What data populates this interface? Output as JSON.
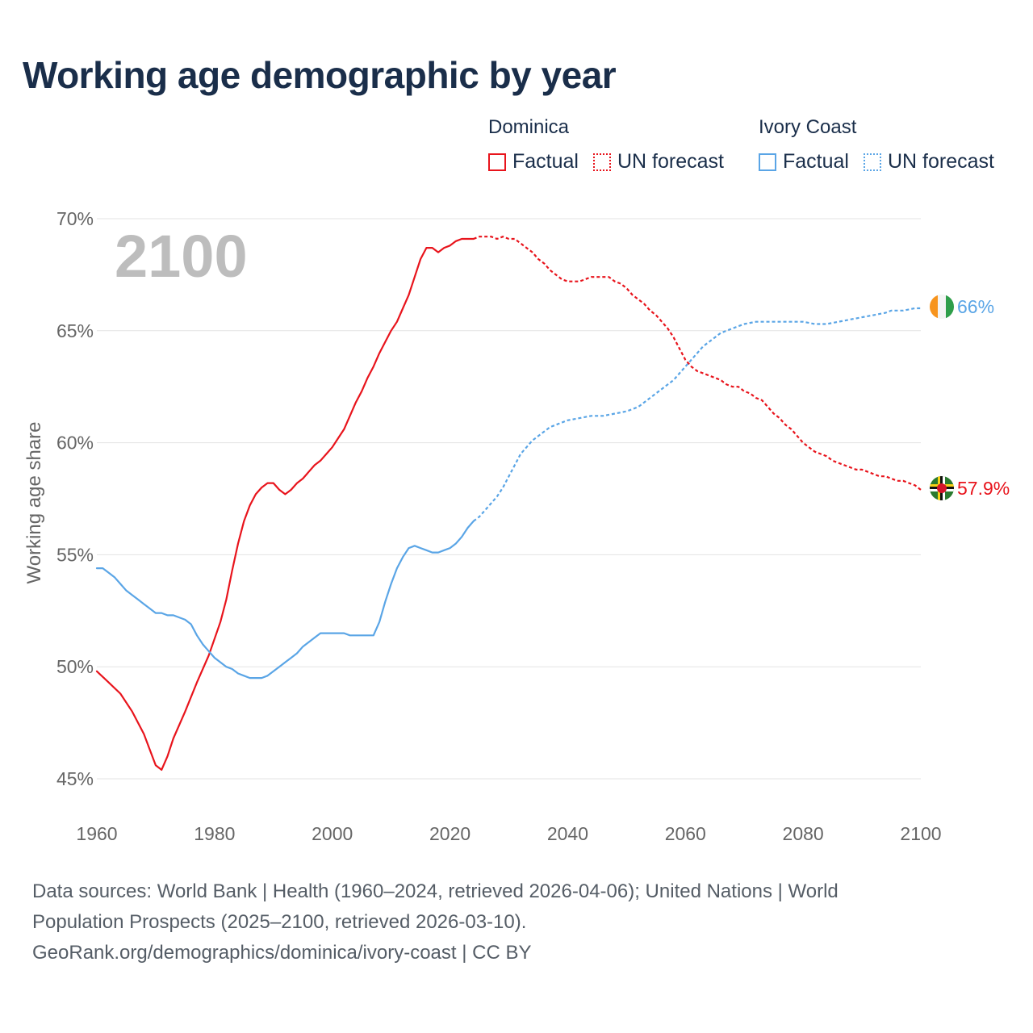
{
  "title": "Working age demographic by year",
  "year_display": "2100",
  "legend": {
    "groups": [
      {
        "name": "Dominica",
        "color": "#e8141c",
        "items": [
          {
            "label": "Factual",
            "style": "solid"
          },
          {
            "label": "UN forecast",
            "style": "dotted"
          }
        ]
      },
      {
        "name": "Ivory Coast",
        "color": "#5aa5e6",
        "items": [
          {
            "label": "Factual",
            "style": "solid"
          },
          {
            "label": "UN forecast",
            "style": "dotted"
          }
        ]
      }
    ]
  },
  "end_labels": {
    "dominica": "57.9%",
    "ivory_coast": "66%"
  },
  "footer": {
    "line1": "Data sources: World Bank | Health (1960–2024, retrieved 2026-04-06); United Nations | World",
    "line2": "Population Prospects (2025–2100, retrieved 2026-03-10).",
    "line3": "GeoRank.org/demographics/dominica/ivory-coast | CC BY"
  },
  "chart_data": {
    "type": "line",
    "title": "Working age demographic by year",
    "xlabel": "",
    "ylabel": "Working age share",
    "xlim": [
      1960,
      2100
    ],
    "ylim": [
      45,
      70
    ],
    "x_ticks": [
      1960,
      1980,
      2000,
      2020,
      2040,
      2060,
      2080,
      2100
    ],
    "y_ticks": [
      45,
      50,
      55,
      60,
      65,
      70
    ],
    "y_tick_labels": [
      "45%",
      "50%",
      "55%",
      "60%",
      "65%",
      "70%"
    ],
    "grid": true,
    "factual_end_year": 2024,
    "series": [
      {
        "name": "Dominica",
        "color": "#e8141c",
        "points": [
          [
            1960,
            49.8
          ],
          [
            1962,
            49.3
          ],
          [
            1964,
            48.8
          ],
          [
            1966,
            48.0
          ],
          [
            1968,
            47.0
          ],
          [
            1969,
            46.3
          ],
          [
            1970,
            45.6
          ],
          [
            1971,
            45.4
          ],
          [
            1972,
            46.0
          ],
          [
            1973,
            46.8
          ],
          [
            1975,
            48.0
          ],
          [
            1977,
            49.3
          ],
          [
            1979,
            50.5
          ],
          [
            1981,
            52.0
          ],
          [
            1982,
            53.0
          ],
          [
            1983,
            54.3
          ],
          [
            1984,
            55.5
          ],
          [
            1985,
            56.5
          ],
          [
            1986,
            57.2
          ],
          [
            1987,
            57.7
          ],
          [
            1988,
            58.0
          ],
          [
            1989,
            58.2
          ],
          [
            1990,
            58.2
          ],
          [
            1991,
            57.9
          ],
          [
            1992,
            57.7
          ],
          [
            1993,
            57.9
          ],
          [
            1994,
            58.2
          ],
          [
            1995,
            58.4
          ],
          [
            1996,
            58.7
          ],
          [
            1997,
            59.0
          ],
          [
            1998,
            59.2
          ],
          [
            1999,
            59.5
          ],
          [
            2000,
            59.8
          ],
          [
            2001,
            60.2
          ],
          [
            2002,
            60.6
          ],
          [
            2003,
            61.2
          ],
          [
            2004,
            61.8
          ],
          [
            2005,
            62.3
          ],
          [
            2006,
            62.9
          ],
          [
            2007,
            63.4
          ],
          [
            2008,
            64.0
          ],
          [
            2009,
            64.5
          ],
          [
            2010,
            65.0
          ],
          [
            2011,
            65.4
          ],
          [
            2012,
            66.0
          ],
          [
            2013,
            66.6
          ],
          [
            2014,
            67.4
          ],
          [
            2015,
            68.2
          ],
          [
            2016,
            68.7
          ],
          [
            2017,
            68.7
          ],
          [
            2018,
            68.5
          ],
          [
            2019,
            68.7
          ],
          [
            2020,
            68.8
          ],
          [
            2021,
            69.0
          ],
          [
            2022,
            69.1
          ],
          [
            2023,
            69.1
          ],
          [
            2024,
            69.1
          ],
          [
            2025,
            69.2
          ],
          [
            2027,
            69.2
          ],
          [
            2028,
            69.1
          ],
          [
            2029,
            69.2
          ],
          [
            2030,
            69.1
          ],
          [
            2031,
            69.1
          ],
          [
            2032,
            68.9
          ],
          [
            2033,
            68.7
          ],
          [
            2034,
            68.5
          ],
          [
            2035,
            68.2
          ],
          [
            2036,
            68.0
          ],
          [
            2037,
            67.7
          ],
          [
            2038,
            67.5
          ],
          [
            2039,
            67.3
          ],
          [
            2040,
            67.2
          ],
          [
            2041,
            67.2
          ],
          [
            2042,
            67.2
          ],
          [
            2043,
            67.3
          ],
          [
            2044,
            67.4
          ],
          [
            2045,
            67.4
          ],
          [
            2046,
            67.4
          ],
          [
            2047,
            67.4
          ],
          [
            2048,
            67.2
          ],
          [
            2049,
            67.1
          ],
          [
            2050,
            66.9
          ],
          [
            2051,
            66.6
          ],
          [
            2052,
            66.4
          ],
          [
            2053,
            66.2
          ],
          [
            2054,
            65.9
          ],
          [
            2055,
            65.7
          ],
          [
            2056,
            65.4
          ],
          [
            2057,
            65.1
          ],
          [
            2058,
            64.7
          ],
          [
            2059,
            64.2
          ],
          [
            2060,
            63.7
          ],
          [
            2061,
            63.4
          ],
          [
            2062,
            63.2
          ],
          [
            2063,
            63.1
          ],
          [
            2064,
            63.0
          ],
          [
            2065,
            62.9
          ],
          [
            2066,
            62.8
          ],
          [
            2067,
            62.6
          ],
          [
            2068,
            62.5
          ],
          [
            2069,
            62.5
          ],
          [
            2070,
            62.3
          ],
          [
            2071,
            62.2
          ],
          [
            2072,
            62.0
          ],
          [
            2073,
            61.9
          ],
          [
            2074,
            61.6
          ],
          [
            2075,
            61.3
          ],
          [
            2076,
            61.1
          ],
          [
            2077,
            60.8
          ],
          [
            2078,
            60.6
          ],
          [
            2079,
            60.3
          ],
          [
            2080,
            60.0
          ],
          [
            2081,
            59.8
          ],
          [
            2082,
            59.6
          ],
          [
            2083,
            59.5
          ],
          [
            2084,
            59.4
          ],
          [
            2085,
            59.2
          ],
          [
            2086,
            59.1
          ],
          [
            2087,
            59.0
          ],
          [
            2088,
            58.9
          ],
          [
            2089,
            58.8
          ],
          [
            2090,
            58.8
          ],
          [
            2091,
            58.7
          ],
          [
            2092,
            58.6
          ],
          [
            2093,
            58.5
          ],
          [
            2094,
            58.5
          ],
          [
            2095,
            58.4
          ],
          [
            2096,
            58.3
          ],
          [
            2097,
            58.3
          ],
          [
            2098,
            58.2
          ],
          [
            2099,
            58.1
          ],
          [
            2100,
            57.9
          ]
        ]
      },
      {
        "name": "Ivory Coast",
        "color": "#5aa5e6",
        "points": [
          [
            1960,
            54.4
          ],
          [
            1961,
            54.4
          ],
          [
            1962,
            54.2
          ],
          [
            1963,
            54.0
          ],
          [
            1964,
            53.7
          ],
          [
            1965,
            53.4
          ],
          [
            1966,
            53.2
          ],
          [
            1967,
            53.0
          ],
          [
            1968,
            52.8
          ],
          [
            1969,
            52.6
          ],
          [
            1970,
            52.4
          ],
          [
            1971,
            52.4
          ],
          [
            1972,
            52.3
          ],
          [
            1973,
            52.3
          ],
          [
            1974,
            52.2
          ],
          [
            1975,
            52.1
          ],
          [
            1976,
            51.9
          ],
          [
            1977,
            51.4
          ],
          [
            1978,
            51.0
          ],
          [
            1979,
            50.7
          ],
          [
            1980,
            50.4
          ],
          [
            1981,
            50.2
          ],
          [
            1982,
            50.0
          ],
          [
            1983,
            49.9
          ],
          [
            1984,
            49.7
          ],
          [
            1985,
            49.6
          ],
          [
            1986,
            49.5
          ],
          [
            1987,
            49.5
          ],
          [
            1988,
            49.5
          ],
          [
            1989,
            49.6
          ],
          [
            1990,
            49.8
          ],
          [
            1991,
            50.0
          ],
          [
            1992,
            50.2
          ],
          [
            1993,
            50.4
          ],
          [
            1994,
            50.6
          ],
          [
            1995,
            50.9
          ],
          [
            1996,
            51.1
          ],
          [
            1997,
            51.3
          ],
          [
            1998,
            51.5
          ],
          [
            1999,
            51.5
          ],
          [
            2000,
            51.5
          ],
          [
            2001,
            51.5
          ],
          [
            2002,
            51.5
          ],
          [
            2003,
            51.4
          ],
          [
            2004,
            51.4
          ],
          [
            2005,
            51.4
          ],
          [
            2006,
            51.4
          ],
          [
            2007,
            51.4
          ],
          [
            2008,
            52.0
          ],
          [
            2009,
            52.9
          ],
          [
            2010,
            53.7
          ],
          [
            2011,
            54.4
          ],
          [
            2012,
            54.9
          ],
          [
            2013,
            55.3
          ],
          [
            2014,
            55.4
          ],
          [
            2015,
            55.3
          ],
          [
            2016,
            55.2
          ],
          [
            2017,
            55.1
          ],
          [
            2018,
            55.1
          ],
          [
            2019,
            55.2
          ],
          [
            2020,
            55.3
          ],
          [
            2021,
            55.5
          ],
          [
            2022,
            55.8
          ],
          [
            2023,
            56.2
          ],
          [
            2024,
            56.5
          ],
          [
            2025,
            56.7
          ],
          [
            2026,
            57.0
          ],
          [
            2027,
            57.3
          ],
          [
            2028,
            57.6
          ],
          [
            2029,
            58.0
          ],
          [
            2030,
            58.5
          ],
          [
            2031,
            59.0
          ],
          [
            2032,
            59.5
          ],
          [
            2033,
            59.8
          ],
          [
            2034,
            60.1
          ],
          [
            2035,
            60.3
          ],
          [
            2036,
            60.5
          ],
          [
            2037,
            60.7
          ],
          [
            2038,
            60.8
          ],
          [
            2039,
            60.9
          ],
          [
            2040,
            61.0
          ],
          [
            2042,
            61.1
          ],
          [
            2044,
            61.2
          ],
          [
            2046,
            61.2
          ],
          [
            2048,
            61.3
          ],
          [
            2050,
            61.4
          ],
          [
            2052,
            61.6
          ],
          [
            2053,
            61.8
          ],
          [
            2054,
            62.0
          ],
          [
            2055,
            62.2
          ],
          [
            2056,
            62.4
          ],
          [
            2057,
            62.6
          ],
          [
            2058,
            62.8
          ],
          [
            2059,
            63.1
          ],
          [
            2060,
            63.4
          ],
          [
            2061,
            63.7
          ],
          [
            2062,
            64.0
          ],
          [
            2063,
            64.3
          ],
          [
            2064,
            64.5
          ],
          [
            2065,
            64.7
          ],
          [
            2066,
            64.9
          ],
          [
            2067,
            65.0
          ],
          [
            2068,
            65.1
          ],
          [
            2069,
            65.2
          ],
          [
            2070,
            65.3
          ],
          [
            2072,
            65.4
          ],
          [
            2074,
            65.4
          ],
          [
            2076,
            65.4
          ],
          [
            2078,
            65.4
          ],
          [
            2080,
            65.4
          ],
          [
            2082,
            65.3
          ],
          [
            2084,
            65.3
          ],
          [
            2086,
            65.4
          ],
          [
            2088,
            65.5
          ],
          [
            2090,
            65.6
          ],
          [
            2092,
            65.7
          ],
          [
            2094,
            65.8
          ],
          [
            2095,
            65.9
          ],
          [
            2097,
            65.9
          ],
          [
            2099,
            66.0
          ],
          [
            2100,
            66.0
          ]
        ]
      }
    ]
  }
}
